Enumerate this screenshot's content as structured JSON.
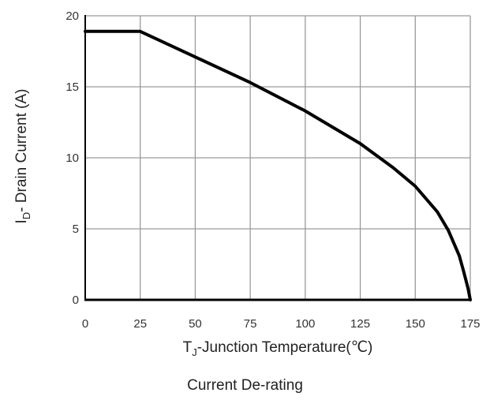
{
  "chart_data": {
    "type": "line",
    "title": "Current De-rating",
    "xlabel": {
      "main": "T",
      "sub": "J",
      "rest": "-Junction Temperature(℃)"
    },
    "ylabel": {
      "main": "I",
      "sub": "D",
      "rest": "- Drain Current (A)"
    },
    "xlim": [
      0,
      175
    ],
    "ylim": [
      0,
      20
    ],
    "xticks": [
      "0",
      "25",
      "50",
      "75",
      "100",
      "125",
      "150",
      "175"
    ],
    "yticks": [
      "0",
      "5",
      "10",
      "15",
      "20"
    ],
    "grid": true,
    "series": [
      {
        "x": [
          0,
          25,
          50,
          75,
          100,
          125,
          140,
          150,
          160,
          165,
          170,
          172,
          174,
          175
        ],
        "y": [
          18.9,
          18.9,
          17.1,
          15.3,
          13.3,
          11.0,
          9.3,
          8.0,
          6.2,
          4.9,
          3.1,
          2.0,
          0.8,
          0
        ]
      }
    ],
    "colors": {
      "line": "#000000",
      "grid": "#9a9a9a",
      "axis": "#000000"
    }
  }
}
